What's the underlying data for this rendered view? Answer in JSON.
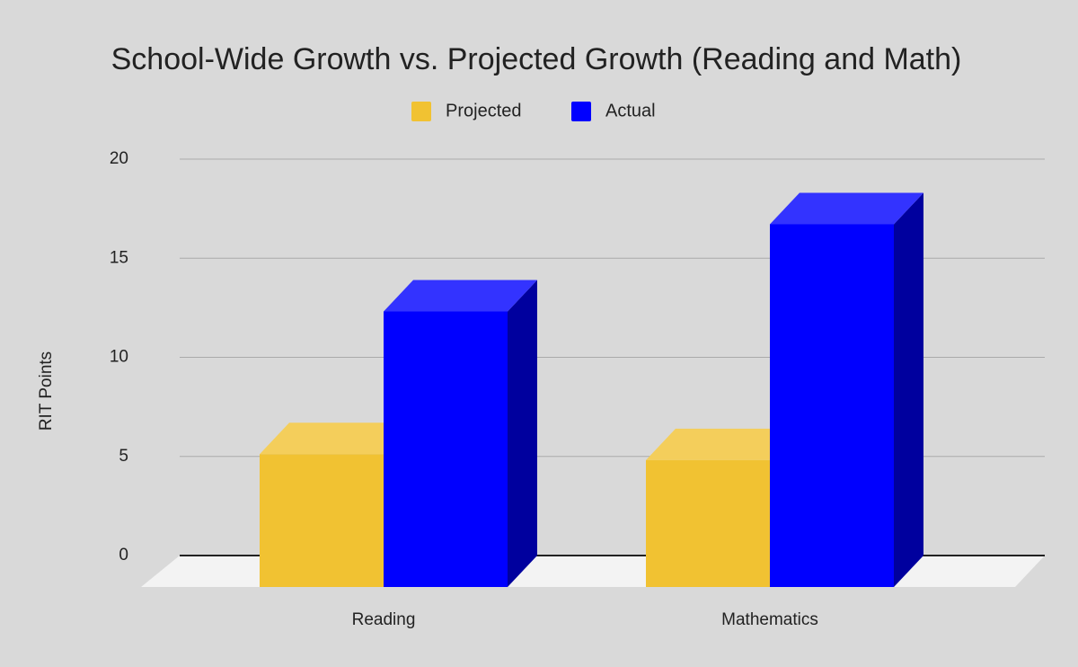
{
  "chart_data": {
    "type": "bar3d",
    "title": "School-Wide Growth vs. Projected Growth (Reading and Math)",
    "y_label": "RIT Points",
    "categories": [
      "Reading",
      "Mathematics"
    ],
    "series": [
      {
        "name": "Projected",
        "color": "#f1c232",
        "values": [
          6.7,
          6.4
        ]
      },
      {
        "name": "Actual",
        "color": "#0000ff",
        "values": [
          13.9,
          18.3
        ]
      }
    ],
    "ylim": [
      0,
      20
    ],
    "yticks": [
      0,
      5,
      10,
      15,
      20
    ],
    "grid": true,
    "legend": "top"
  }
}
